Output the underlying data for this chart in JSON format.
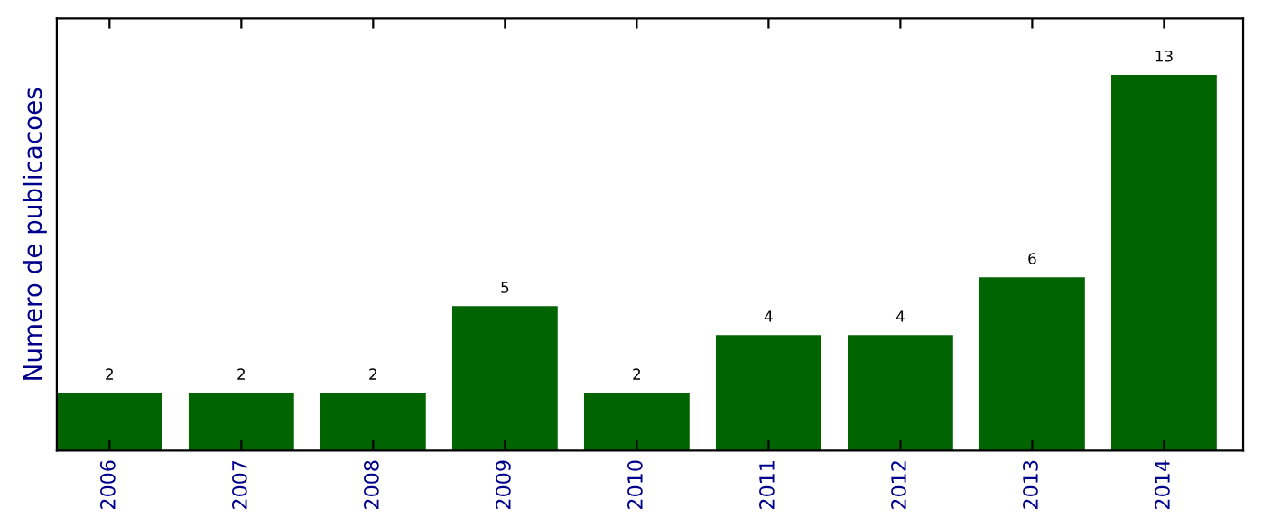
{
  "chart_data": {
    "type": "bar",
    "ylabel": "Numero de publicacoes",
    "categories": [
      "2006",
      "2007",
      "2008",
      "2009",
      "2010",
      "2011",
      "2012",
      "2013",
      "2014"
    ],
    "values": [
      2,
      2,
      2,
      5,
      2,
      4,
      4,
      6,
      13
    ],
    "color": "#006400",
    "data_labels": true,
    "grid": false,
    "legend": false,
    "tick_labels": "x"
  }
}
